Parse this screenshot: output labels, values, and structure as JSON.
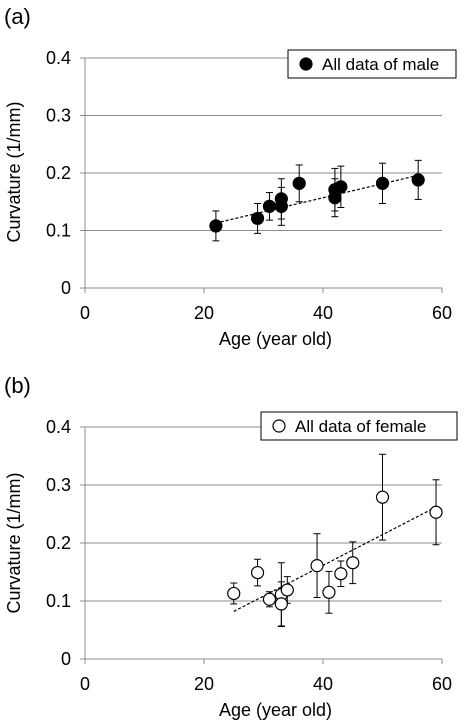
{
  "chart_data": [
    {
      "panel_label": "(a)",
      "type": "scatter",
      "xlabel": "Age (year old)",
      "ylabel": "Curvature (1/mm)",
      "xlim": [
        0,
        60
      ],
      "ylim": [
        0,
        0.4
      ],
      "xticks": [
        0,
        20,
        40,
        60
      ],
      "yticks": [
        0,
        0.1,
        0.2,
        0.3,
        0.4
      ],
      "xtick_labels": [
        "0",
        "20",
        "40",
        "60"
      ],
      "ytick_labels": [
        "0",
        "0.1",
        "0.2",
        "0.3",
        "0.4"
      ],
      "grid": "horizontal",
      "legend_position": "top-right",
      "series": [
        {
          "name": "All data of male",
          "marker": "filled-circle",
          "color": "#000000",
          "points": [
            {
              "x": 22,
              "y": 0.108,
              "err": 0.026
            },
            {
              "x": 29,
              "y": 0.121,
              "err": 0.026
            },
            {
              "x": 31,
              "y": 0.142,
              "err": 0.024
            },
            {
              "x": 33,
              "y": 0.155,
              "err": 0.035
            },
            {
              "x": 33,
              "y": 0.142,
              "err": 0.033
            },
            {
              "x": 36,
              "y": 0.182,
              "err": 0.032
            },
            {
              "x": 42,
              "y": 0.171,
              "err": 0.037
            },
            {
              "x": 42,
              "y": 0.157,
              "err": 0.033
            },
            {
              "x": 43,
              "y": 0.176,
              "err": 0.036
            },
            {
              "x": 50,
              "y": 0.182,
              "err": 0.035
            },
            {
              "x": 56,
              "y": 0.188,
              "err": 0.034
            }
          ],
          "trendline": {
            "x": [
              22,
              56
            ],
            "y": [
              0.113,
              0.196
            ],
            "style": "dashed"
          }
        }
      ]
    },
    {
      "panel_label": "(b)",
      "type": "scatter",
      "xlabel": "Age (year old)",
      "ylabel": "Curvature (1/mm)",
      "xlim": [
        0,
        60
      ],
      "ylim": [
        0,
        0.4
      ],
      "xticks": [
        0,
        20,
        40,
        60
      ],
      "yticks": [
        0,
        0.1,
        0.2,
        0.3,
        0.4
      ],
      "xtick_labels": [
        "0",
        "20",
        "40",
        "60"
      ],
      "ytick_labels": [
        "0",
        "0.1",
        "0.2",
        "0.3",
        "0.4"
      ],
      "grid": "horizontal",
      "legend_position": "top-right",
      "series": [
        {
          "name": "All data of female",
          "marker": "open-circle",
          "color": "#000000",
          "points": [
            {
              "x": 25,
              "y": 0.113,
              "err": 0.018
            },
            {
              "x": 29,
              "y": 0.149,
              "err": 0.023
            },
            {
              "x": 31,
              "y": 0.103,
              "err": 0.013
            },
            {
              "x": 33,
              "y": 0.111,
              "err": 0.055
            },
            {
              "x": 33,
              "y": 0.095,
              "err": 0.038
            },
            {
              "x": 34,
              "y": 0.119,
              "err": 0.023
            },
            {
              "x": 39,
              "y": 0.161,
              "err": 0.055
            },
            {
              "x": 41,
              "y": 0.115,
              "err": 0.036
            },
            {
              "x": 43,
              "y": 0.147,
              "err": 0.022
            },
            {
              "x": 45,
              "y": 0.166,
              "err": 0.036
            },
            {
              "x": 50,
              "y": 0.279,
              "err": 0.074
            },
            {
              "x": 59,
              "y": 0.253,
              "err": 0.056
            }
          ],
          "trendline": {
            "x": [
              25,
              59
            ],
            "y": [
              0.082,
              0.262
            ],
            "style": "dashed"
          }
        }
      ]
    }
  ]
}
